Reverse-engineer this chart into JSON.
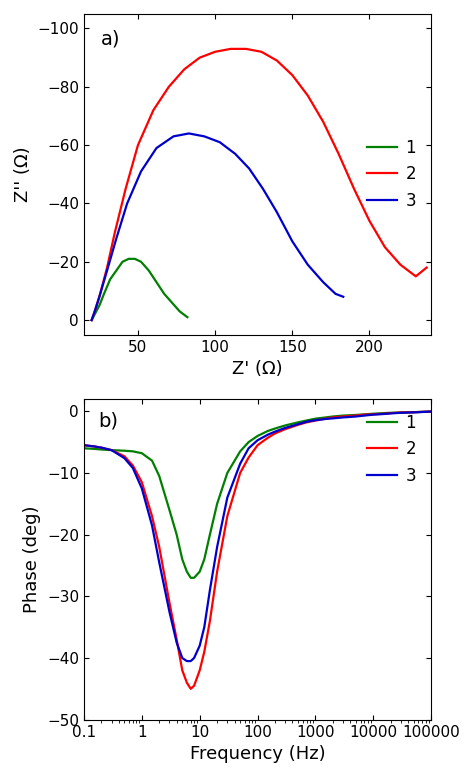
{
  "panel_a": {
    "title": "a)",
    "xlabel": "Z' (Ω)",
    "ylabel": "Z'' (Ω)",
    "xlim": [
      15,
      240
    ],
    "ylim": [
      5,
      -105
    ],
    "yticks": [
      0,
      -20,
      -40,
      -60,
      -80,
      -100
    ],
    "xticks": [
      50,
      100,
      150,
      200
    ],
    "colors": [
      "#008000",
      "#ff0000",
      "#0000cc"
    ],
    "labels": [
      "1",
      "2",
      "3"
    ],
    "curve1_zr": [
      20,
      22,
      25,
      28,
      32,
      36,
      40,
      44,
      48,
      52,
      57,
      62,
      67,
      72,
      77,
      82
    ],
    "curve1_zi": [
      0,
      -2,
      -5,
      -9,
      -14,
      -17,
      -20,
      -21,
      -21,
      -20,
      -17,
      -13,
      -9,
      -6,
      -3,
      -1
    ],
    "curve2_zr": [
      20,
      22,
      25,
      30,
      35,
      42,
      50,
      60,
      70,
      80,
      90,
      100,
      110,
      120,
      130,
      140,
      150,
      160,
      170,
      180,
      190,
      200,
      210,
      220,
      230,
      237
    ],
    "curve2_zi": [
      0,
      -3,
      -8,
      -18,
      -30,
      -45,
      -60,
      -72,
      -80,
      -86,
      -90,
      -92,
      -93,
      -93,
      -92,
      -89,
      -84,
      -77,
      -68,
      -57,
      -45,
      -34,
      -25,
      -19,
      -15,
      -18
    ],
    "curve3_zr": [
      20,
      22,
      25,
      30,
      36,
      43,
      52,
      62,
      73,
      83,
      93,
      103,
      113,
      122,
      131,
      140,
      150,
      160,
      170,
      178,
      183
    ],
    "curve3_zi": [
      0,
      -3,
      -8,
      -17,
      -28,
      -40,
      -51,
      -59,
      -63,
      -64,
      -63,
      -61,
      -57,
      -52,
      -45,
      -37,
      -27,
      -19,
      -13,
      -9,
      -8
    ]
  },
  "panel_b": {
    "title": "b)",
    "xlabel": "Frequency (Hz)",
    "ylabel": "Phase (deg)",
    "xlim": [
      0.1,
      100000
    ],
    "ylim": [
      -50,
      2
    ],
    "yticks": [
      0,
      -10,
      -20,
      -30,
      -40,
      -50
    ],
    "colors": [
      "#008000",
      "#ff0000",
      "#0000cc"
    ],
    "labels": [
      "1",
      "2",
      "3"
    ],
    "freq": [
      0.1,
      0.15,
      0.2,
      0.3,
      0.5,
      0.7,
      1.0,
      1.5,
      2.0,
      3.0,
      4.0,
      5.0,
      6.0,
      7.0,
      8.0,
      10.0,
      12,
      15,
      20,
      30,
      50,
      70,
      100,
      150,
      200,
      300,
      500,
      700,
      1000,
      1500,
      2000,
      3000,
      5000,
      7000,
      10000,
      15000,
      20000,
      30000,
      50000,
      70000,
      100000
    ],
    "phase1": [
      -6.0,
      -6.1,
      -6.2,
      -6.3,
      -6.4,
      -6.5,
      -6.8,
      -8.0,
      -10.5,
      -16,
      -20,
      -24,
      -26,
      -27,
      -27,
      -26,
      -24,
      -20,
      -15,
      -10,
      -6.5,
      -5.0,
      -4.0,
      -3.2,
      -2.8,
      -2.3,
      -1.8,
      -1.5,
      -1.2,
      -1.0,
      -0.85,
      -0.7,
      -0.6,
      -0.5,
      -0.4,
      -0.3,
      -0.25,
      -0.2,
      -0.15,
      -0.1,
      -0.05
    ],
    "phase2": [
      -5.5,
      -5.7,
      -5.9,
      -6.3,
      -7.3,
      -8.8,
      -11.5,
      -17,
      -22,
      -31,
      -37,
      -42,
      -44,
      -45,
      -44.5,
      -42,
      -39,
      -34,
      -26,
      -17,
      -10,
      -7.5,
      -5.5,
      -4.3,
      -3.6,
      -2.9,
      -2.2,
      -1.8,
      -1.5,
      -1.2,
      -1.0,
      -0.85,
      -0.7,
      -0.55,
      -0.5,
      -0.4,
      -0.3,
      -0.2,
      -0.15,
      -0.1,
      -0.05
    ],
    "phase3": [
      -5.5,
      -5.7,
      -5.9,
      -6.3,
      -7.6,
      -9.2,
      -12.5,
      -18.5,
      -24.5,
      -32.5,
      -37.5,
      -40,
      -40.5,
      -40.5,
      -40,
      -38,
      -35,
      -29,
      -22,
      -14,
      -8.5,
      -6.0,
      -4.7,
      -3.8,
      -3.3,
      -2.7,
      -2.1,
      -1.7,
      -1.45,
      -1.25,
      -1.15,
      -1.0,
      -0.85,
      -0.7,
      -0.55,
      -0.45,
      -0.35,
      -0.25,
      -0.18,
      -0.12,
      -0.05
    ]
  },
  "background": "#ffffff",
  "linewidth": 1.6
}
